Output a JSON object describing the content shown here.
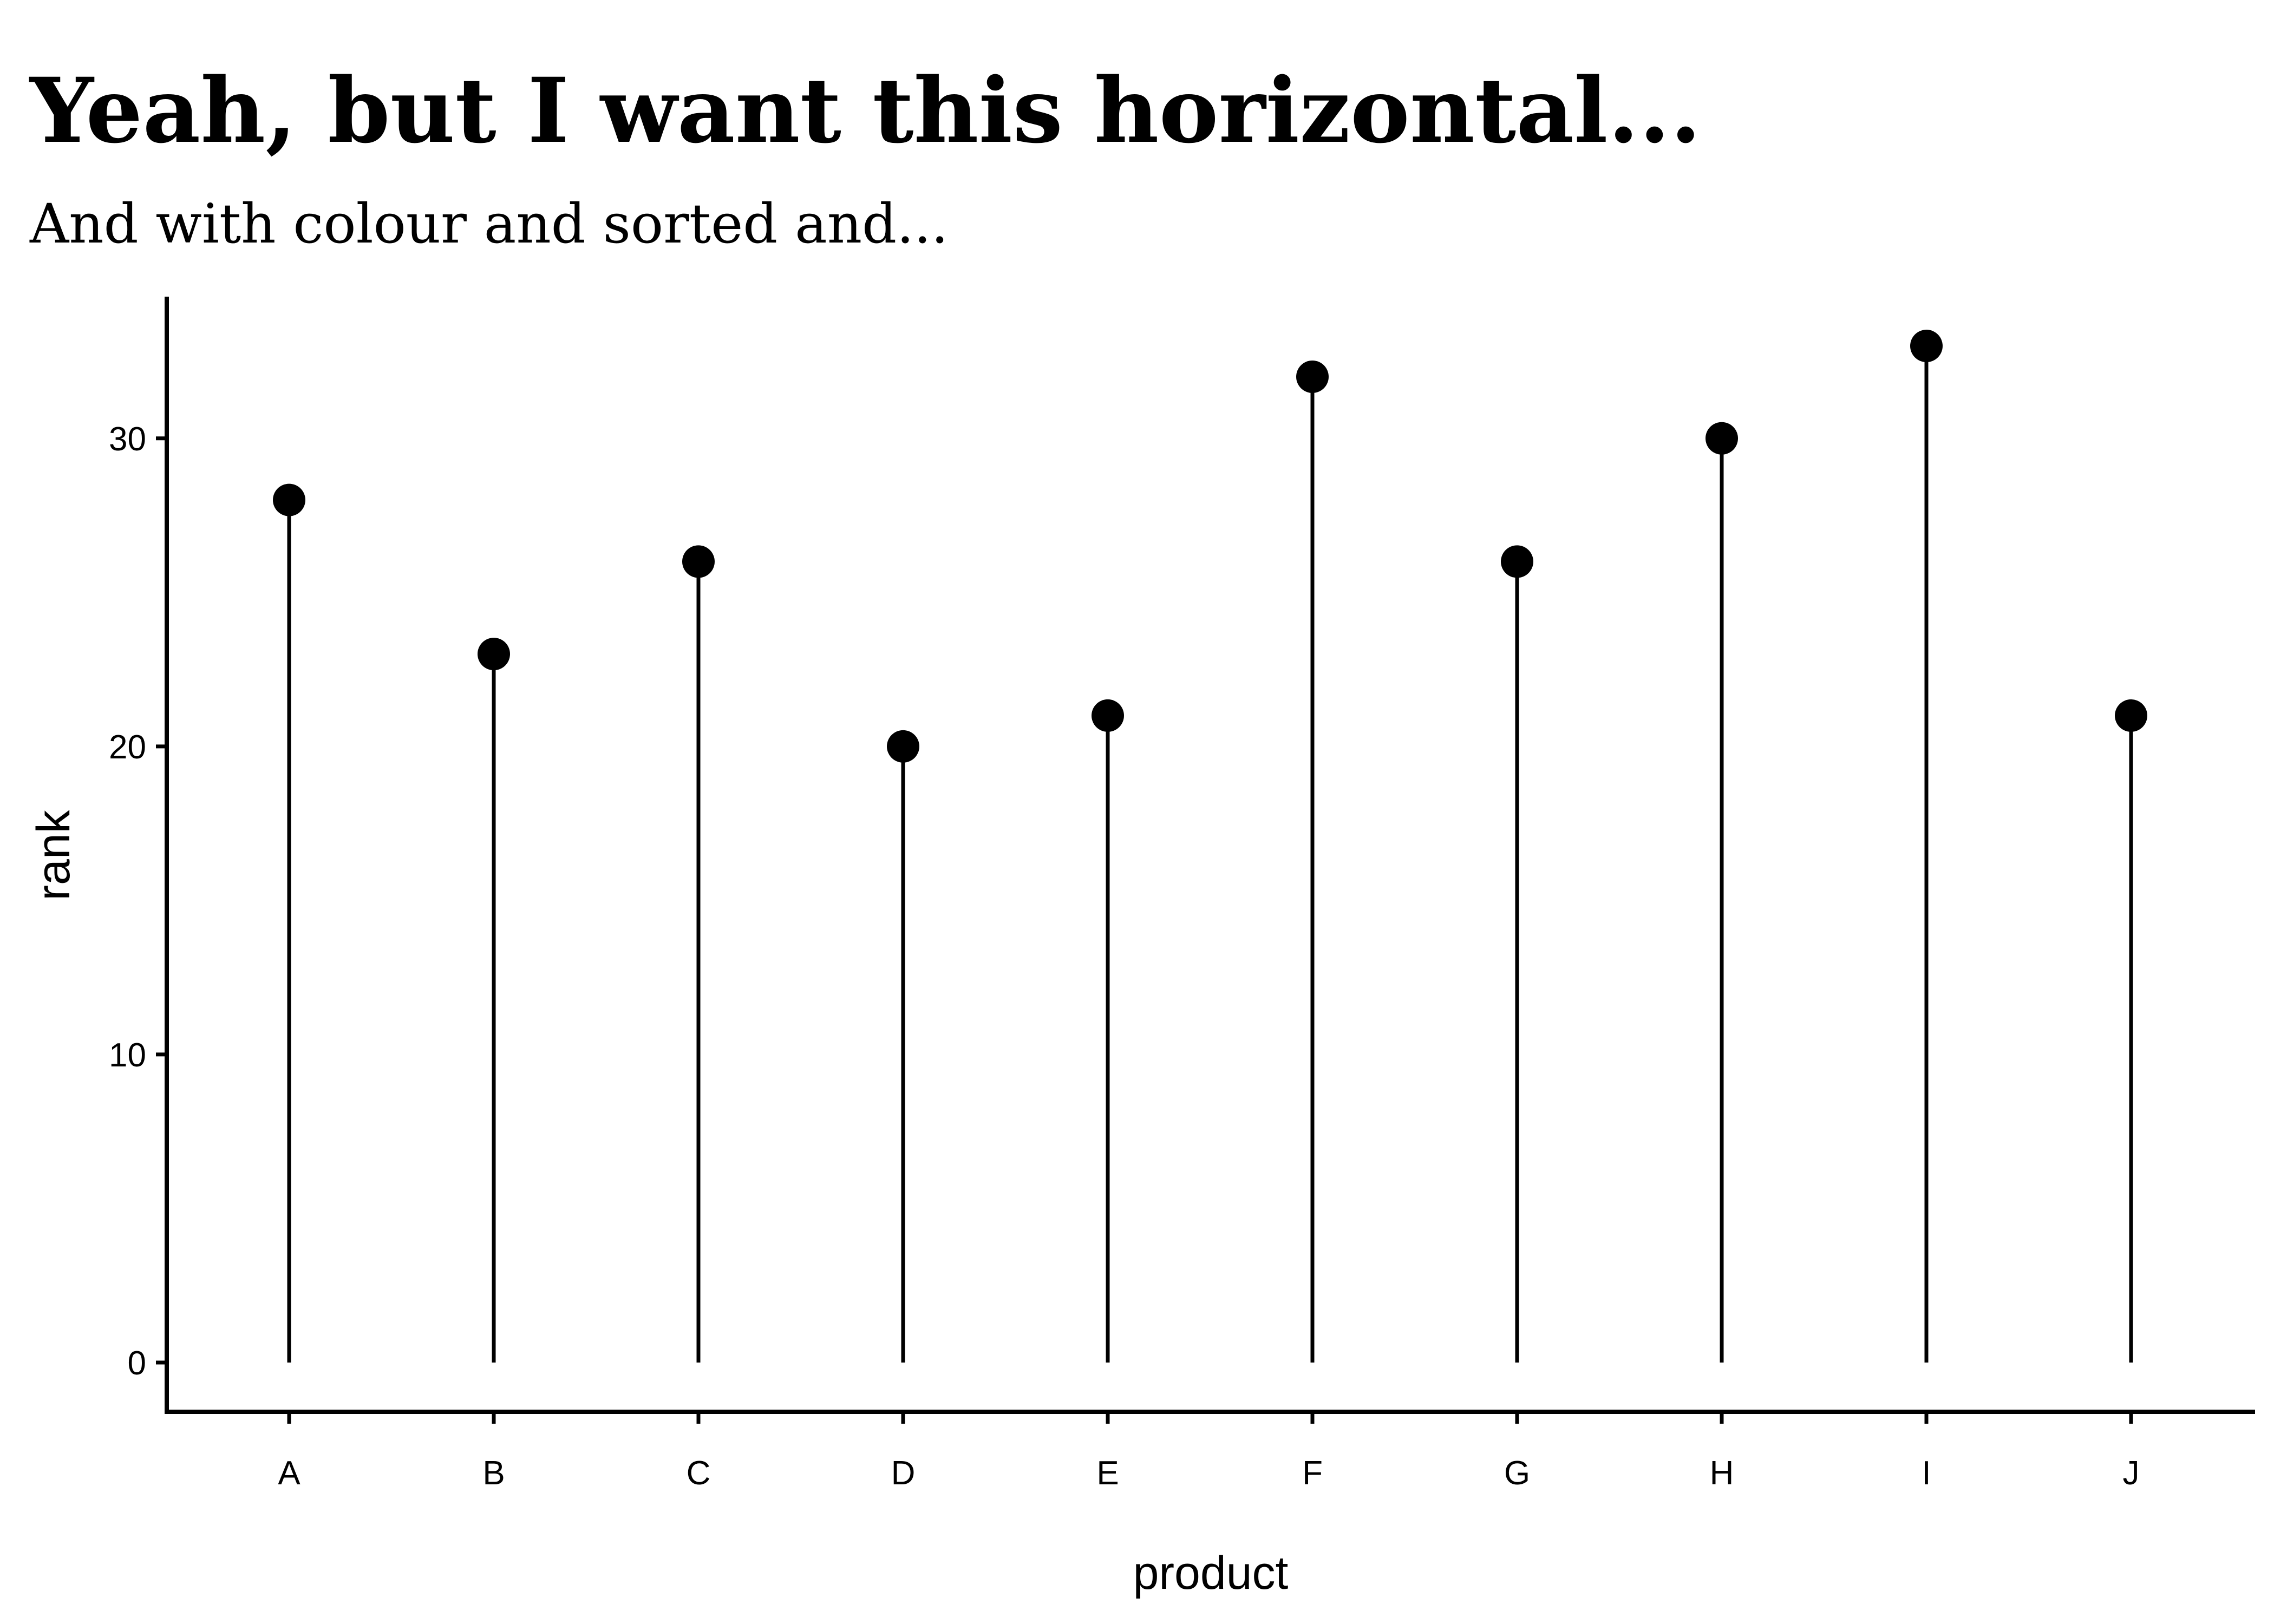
{
  "chart_data": {
    "type": "lollipop",
    "title": "Yeah, but I want this horizontal...",
    "subtitle": "And with colour and sorted and...",
    "xlabel": "product",
    "ylabel": "rank",
    "categories": [
      "A",
      "B",
      "C",
      "D",
      "E",
      "F",
      "G",
      "H",
      "I",
      "J"
    ],
    "values": [
      28,
      23,
      26,
      20,
      21,
      32,
      26,
      30,
      33,
      21
    ],
    "ylim": [
      -1.6,
      34.6
    ],
    "yticks": [
      0,
      10,
      20,
      30
    ],
    "grid": false,
    "legend": "none",
    "colors": {
      "point": "#000000",
      "stem": "#000000",
      "axis": "#000000"
    }
  }
}
